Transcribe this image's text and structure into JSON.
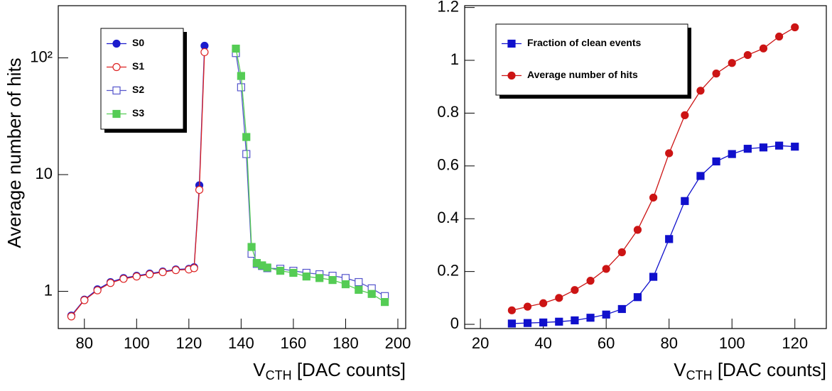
{
  "chart_data": [
    {
      "type": "line",
      "log_y": true,
      "legend": "upper left",
      "ylabel": "Average number of hits",
      "xlabel": [
        "V",
        "CTH",
        " [DAC counts]"
      ],
      "xlim": [
        70,
        203
      ],
      "xticks": [
        80,
        100,
        120,
        140,
        160,
        180,
        200
      ],
      "ylim": [
        0.48,
        280
      ],
      "yticks": [
        1,
        10,
        {
          "value": 100,
          "label": "10²"
        }
      ],
      "series": [
        {
          "name": "S0",
          "color": "#1c1ccc",
          "marker": "circle",
          "x": [
            75,
            80,
            85,
            90,
            95,
            100,
            105,
            110,
            115,
            120,
            122,
            124,
            126
          ],
          "values": [
            0.62,
            0.85,
            1.04,
            1.2,
            1.3,
            1.36,
            1.42,
            1.48,
            1.54,
            1.56,
            1.61,
            8.1,
            127
          ]
        },
        {
          "name": "S1",
          "color": "#dd2222",
          "marker": "open-circle",
          "x": [
            75,
            80,
            85,
            90,
            95,
            100,
            105,
            110,
            115,
            120,
            122,
            124,
            126
          ],
          "values": [
            0.61,
            0.84,
            1.02,
            1.18,
            1.28,
            1.34,
            1.4,
            1.46,
            1.52,
            1.54,
            1.58,
            7.4,
            112
          ]
        },
        {
          "name": "S2",
          "color": "#5555cc",
          "marker": "open-square",
          "x": [
            138,
            140,
            142,
            144,
            146,
            148,
            150,
            155,
            160,
            165,
            170,
            175,
            180,
            185,
            190,
            195
          ],
          "values": [
            110,
            56,
            15,
            2.1,
            1.72,
            1.65,
            1.58,
            1.56,
            1.5,
            1.44,
            1.4,
            1.36,
            1.3,
            1.2,
            1.06,
            0.91
          ]
        },
        {
          "name": "S3",
          "color": "#55cc55",
          "marker": "square",
          "x": [
            138,
            140,
            142,
            144,
            146,
            148,
            150,
            155,
            160,
            165,
            170,
            175,
            180,
            185,
            190,
            195
          ],
          "values": [
            120,
            70,
            21,
            2.4,
            1.75,
            1.67,
            1.6,
            1.5,
            1.44,
            1.34,
            1.3,
            1.25,
            1.15,
            1.03,
            0.95,
            0.81
          ]
        }
      ]
    },
    {
      "type": "line",
      "log_y": false,
      "legend": "upper left",
      "xlabel": [
        "V",
        "CTH",
        " [DAC counts]"
      ],
      "xlim": [
        15,
        130
      ],
      "xticks": [
        20,
        40,
        60,
        80,
        100,
        120
      ],
      "ylim": [
        -0.016,
        1.207
      ],
      "yticks": [
        0,
        0.2,
        0.4,
        0.6,
        0.8,
        1,
        1.2
      ],
      "series": [
        {
          "name": "Fraction of clean events",
          "color": "#1010cc",
          "marker": "square",
          "x": [
            30,
            35,
            40,
            45,
            50,
            55,
            60,
            65,
            70,
            75,
            80,
            85,
            90,
            95,
            100,
            105,
            110,
            115,
            120
          ],
          "values": [
            0.003,
            0.005,
            0.007,
            0.01,
            0.015,
            0.025,
            0.037,
            0.058,
            0.103,
            0.18,
            0.323,
            0.467,
            0.562,
            0.617,
            0.645,
            0.665,
            0.67,
            0.677,
            0.673
          ]
        },
        {
          "name": "Average number of hits",
          "color": "#cc1414",
          "marker": "circle",
          "x": [
            30,
            35,
            40,
            45,
            50,
            55,
            60,
            65,
            70,
            75,
            80,
            85,
            90,
            95,
            100,
            105,
            110,
            115,
            120
          ],
          "values": [
            0.053,
            0.067,
            0.08,
            0.1,
            0.13,
            0.165,
            0.21,
            0.273,
            0.358,
            0.48,
            0.648,
            0.792,
            0.885,
            0.95,
            0.99,
            1.02,
            1.045,
            1.09,
            1.125
          ]
        }
      ]
    }
  ]
}
